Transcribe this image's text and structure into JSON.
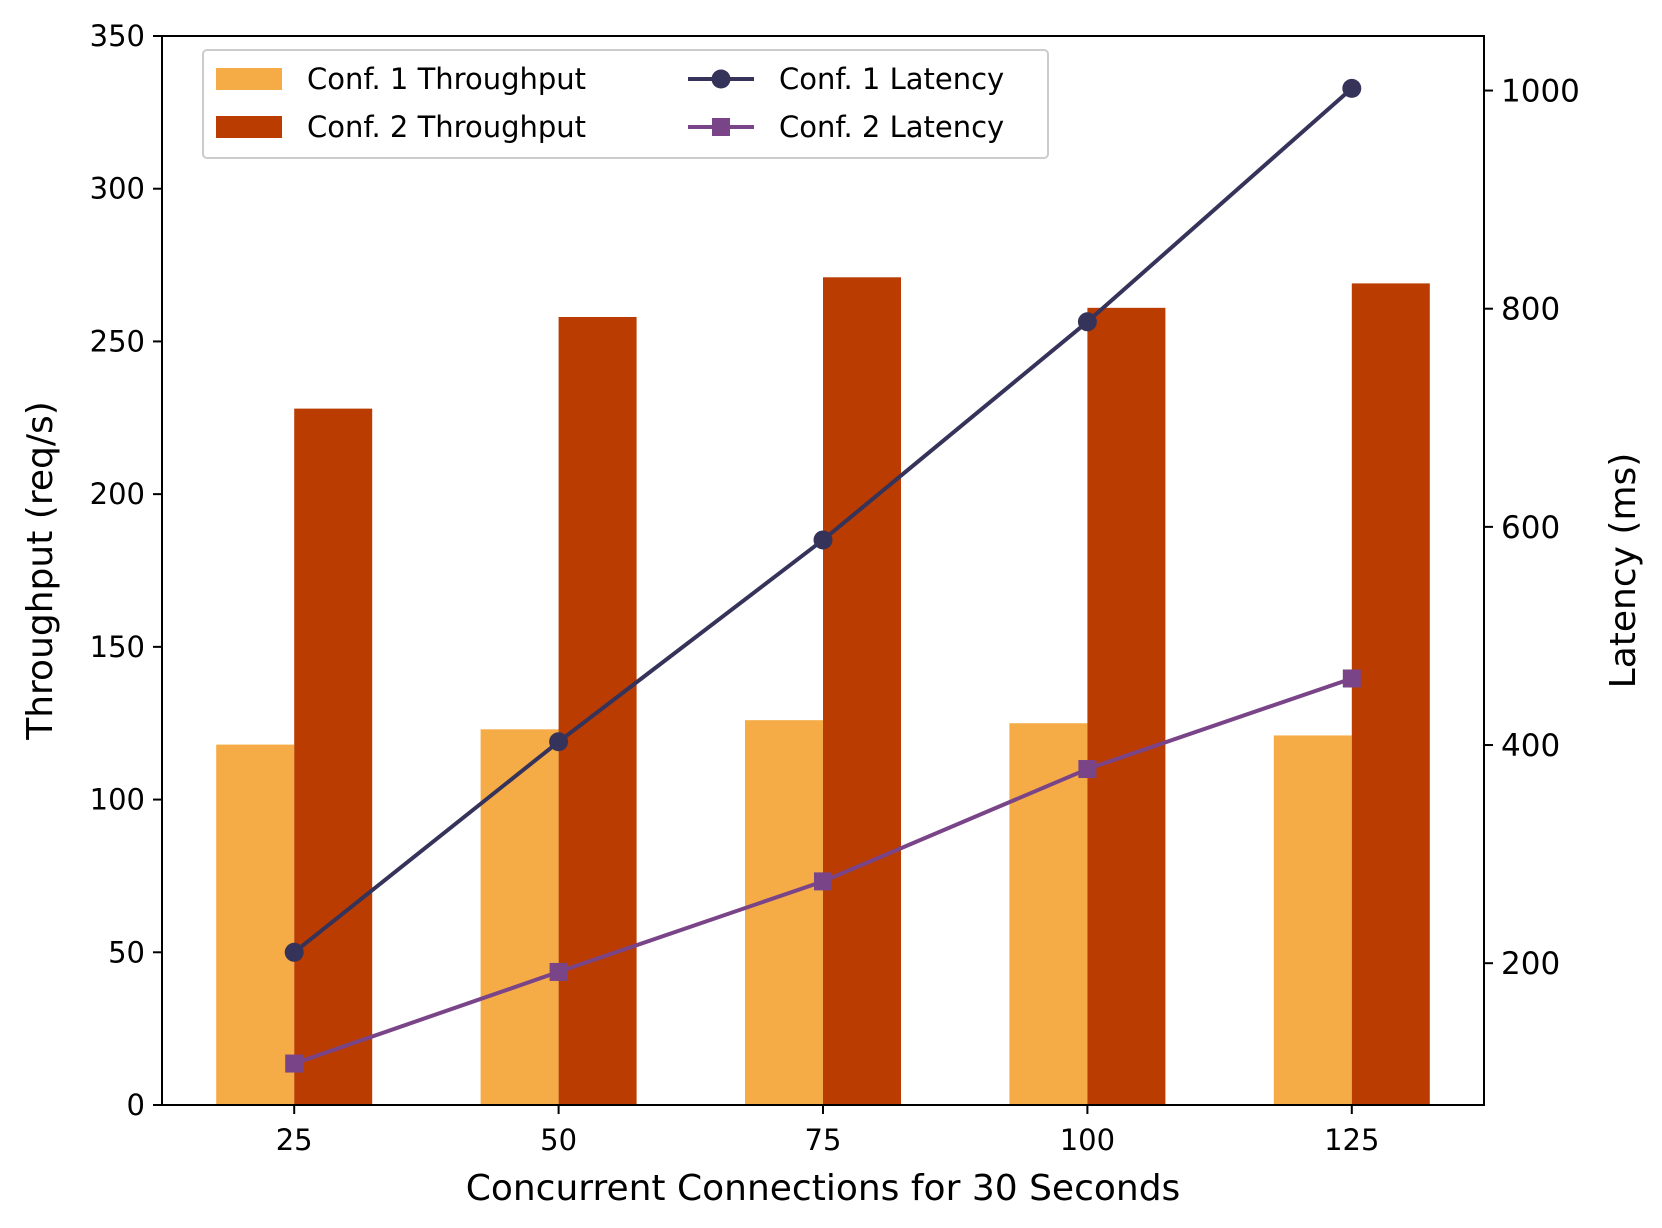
{
  "chart_data": {
    "type": "bar",
    "categories": [
      "25",
      "50",
      "75",
      "100",
      "125"
    ],
    "xlabel": "Concurrent Connections for 30 Seconds",
    "ylabel_left": "Throughput (req/s)",
    "ylabel_right": "Latency (ms)",
    "ylim_left": [
      0,
      350
    ],
    "yticks_left": [
      0,
      50,
      100,
      150,
      200,
      250,
      300,
      350
    ],
    "ylim_right": [
      70,
      1050
    ],
    "yticks_right": [
      200,
      400,
      600,
      800,
      1000
    ],
    "grid": false,
    "legend_position": "top-left",
    "bar_series": [
      {
        "name": "Conf. 1 Throughput",
        "color": "#F5AC47",
        "values": [
          118,
          123,
          126,
          125,
          121
        ]
      },
      {
        "name": "Conf. 2 Throughput",
        "color": "#BA3C00",
        "values": [
          228,
          258,
          271,
          261,
          269
        ]
      }
    ],
    "line_series": [
      {
        "name": "Conf. 1 Latency",
        "color": "#36335A",
        "marker": "circle",
        "values": [
          210,
          403,
          588,
          788,
          1002
        ]
      },
      {
        "name": "Conf. 2 Latency",
        "color": "#7A4488",
        "marker": "square",
        "values": [
          108,
          192,
          275,
          378,
          461
        ]
      }
    ]
  }
}
